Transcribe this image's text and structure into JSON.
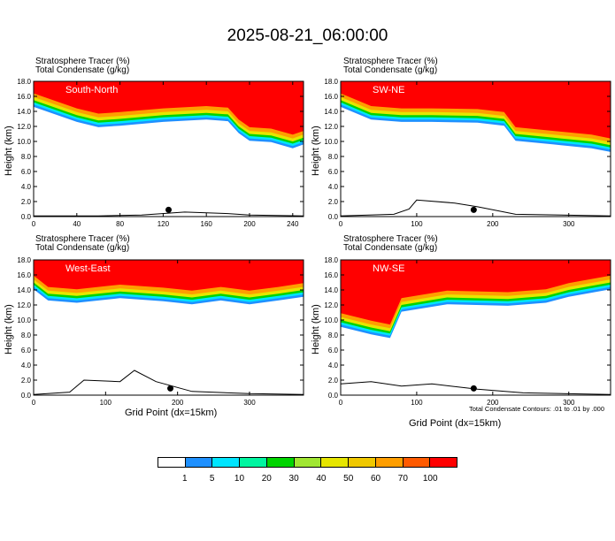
{
  "title": "2025-08-21_06:00:00",
  "panel_header": {
    "line1": "Stratosphere Tracer    (%)",
    "line2": "Total Condensate    (g/kg)"
  },
  "y_axis_label": "Height (km)",
  "x_axis_label": "Grid Point (dx=15km)",
  "contour_note": "Total Condensate Contours: .01 to .01 by .000",
  "colorbar": {
    "colors": [
      "#ffffff",
      "#1e90ff",
      "#00e5ff",
      "#00f5a0",
      "#00d400",
      "#a0e632",
      "#e6e600",
      "#f0c800",
      "#ff9e00",
      "#ff5a00",
      "#ff0000"
    ],
    "labels": [
      "1",
      "5",
      "10",
      "20",
      "30",
      "40",
      "50",
      "60",
      "70",
      "100"
    ]
  },
  "chart_data": [
    {
      "type": "contour",
      "panel": "South-North",
      "xlim": [
        0,
        250
      ],
      "ylim": [
        0,
        18
      ],
      "xticks": [
        0,
        40,
        80,
        120,
        160,
        200,
        240
      ],
      "yticks": [
        0,
        2,
        4,
        6,
        8,
        10,
        12,
        14,
        16,
        18
      ],
      "tropopause_km": [
        [
          0,
          15.5
        ],
        [
          20,
          14.5
        ],
        [
          40,
          13.5
        ],
        [
          60,
          12.8
        ],
        [
          80,
          13.0
        ],
        [
          120,
          13.5
        ],
        [
          160,
          13.8
        ],
        [
          180,
          13.6
        ],
        [
          190,
          12.0
        ],
        [
          200,
          11.0
        ],
        [
          220,
          10.8
        ],
        [
          240,
          10.0
        ],
        [
          250,
          10.5
        ]
      ],
      "terrain_km": [
        [
          0,
          0.1
        ],
        [
          60,
          0.1
        ],
        [
          100,
          0.2
        ],
        [
          140,
          0.6
        ],
        [
          180,
          0.4
        ],
        [
          200,
          0.2
        ],
        [
          250,
          0.1
        ]
      ],
      "marker_x": 125
    },
    {
      "type": "contour",
      "panel": "SW-NE",
      "xlim": [
        0,
        355
      ],
      "ylim": [
        0,
        18
      ],
      "xticks": [
        0,
        100,
        200,
        300
      ],
      "yticks": [
        0,
        2,
        4,
        6,
        8,
        10,
        12,
        14,
        16,
        18
      ],
      "tropopause_km": [
        [
          0,
          15.5
        ],
        [
          40,
          13.8
        ],
        [
          80,
          13.5
        ],
        [
          120,
          13.5
        ],
        [
          180,
          13.4
        ],
        [
          215,
          13.0
        ],
        [
          230,
          11.0
        ],
        [
          280,
          10.5
        ],
        [
          330,
          10.0
        ],
        [
          355,
          9.5
        ]
      ],
      "terrain_km": [
        [
          0,
          0.1
        ],
        [
          70,
          0.3
        ],
        [
          90,
          1.0
        ],
        [
          100,
          2.2
        ],
        [
          150,
          1.8
        ],
        [
          180,
          1.3
        ],
        [
          230,
          0.3
        ],
        [
          355,
          0.1
        ]
      ],
      "marker_x": 175
    },
    {
      "type": "contour",
      "panel": "West-East",
      "xlim": [
        0,
        375
      ],
      "ylim": [
        0,
        18
      ],
      "xticks": [
        0,
        100,
        200,
        300
      ],
      "yticks": [
        0,
        2,
        4,
        6,
        8,
        10,
        12,
        14,
        16,
        18
      ],
      "tropopause_km": [
        [
          0,
          15.0
        ],
        [
          20,
          13.5
        ],
        [
          60,
          13.2
        ],
        [
          120,
          13.8
        ],
        [
          180,
          13.4
        ],
        [
          220,
          13.0
        ],
        [
          260,
          13.5
        ],
        [
          300,
          13.0
        ],
        [
          340,
          13.5
        ],
        [
          375,
          14.0
        ]
      ],
      "terrain_km": [
        [
          0,
          0.1
        ],
        [
          50,
          0.4
        ],
        [
          70,
          2.0
        ],
        [
          120,
          1.8
        ],
        [
          140,
          3.3
        ],
        [
          170,
          1.8
        ],
        [
          220,
          0.5
        ],
        [
          300,
          0.2
        ],
        [
          375,
          0.1
        ]
      ],
      "marker_x": 190
    },
    {
      "type": "contour",
      "panel": "NW-SE",
      "xlim": [
        0,
        355
      ],
      "ylim": [
        0,
        18
      ],
      "xticks": [
        0,
        100,
        200,
        300
      ],
      "yticks": [
        0,
        2,
        4,
        6,
        8,
        10,
        12,
        14,
        16,
        18
      ],
      "tropopause_km": [
        [
          0,
          10.0
        ],
        [
          40,
          9.0
        ],
        [
          65,
          8.5
        ],
        [
          80,
          12.0
        ],
        [
          140,
          13.0
        ],
        [
          220,
          12.8
        ],
        [
          270,
          13.2
        ],
        [
          300,
          14.0
        ],
        [
          355,
          15.0
        ]
      ],
      "terrain_km": [
        [
          0,
          1.5
        ],
        [
          40,
          1.8
        ],
        [
          80,
          1.2
        ],
        [
          120,
          1.5
        ],
        [
          180,
          0.8
        ],
        [
          240,
          0.3
        ],
        [
          355,
          0.1
        ]
      ],
      "marker_x": 175
    }
  ]
}
